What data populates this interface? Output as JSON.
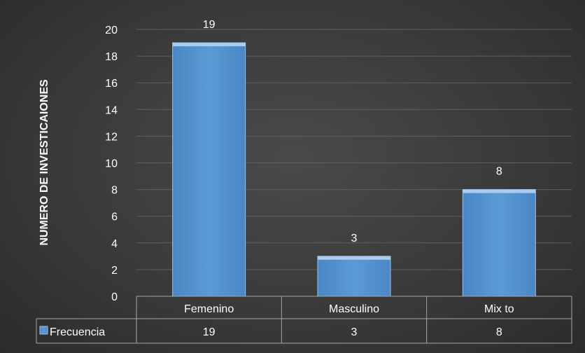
{
  "chart_data": {
    "type": "bar",
    "categories": [
      "Femenino",
      "Masculino",
      "Mix to"
    ],
    "series": [
      {
        "name": "Frecuencia",
        "values": [
          19,
          3,
          8
        ],
        "color": "#5b9bd5"
      }
    ],
    "title": "",
    "xlabel": "",
    "ylabel": "NUMERO DE INVESTICAIONES",
    "ylim": [
      0,
      20
    ],
    "yticks": [
      0,
      2,
      4,
      6,
      8,
      10,
      12,
      14,
      16,
      18,
      20
    ],
    "grid": true,
    "data_table": true,
    "legend": "in data table"
  },
  "colors": {
    "background": "#3a3a3a",
    "bar": "#5b9bd5",
    "text": "#ffffff",
    "grid": "#5f5f5f"
  }
}
